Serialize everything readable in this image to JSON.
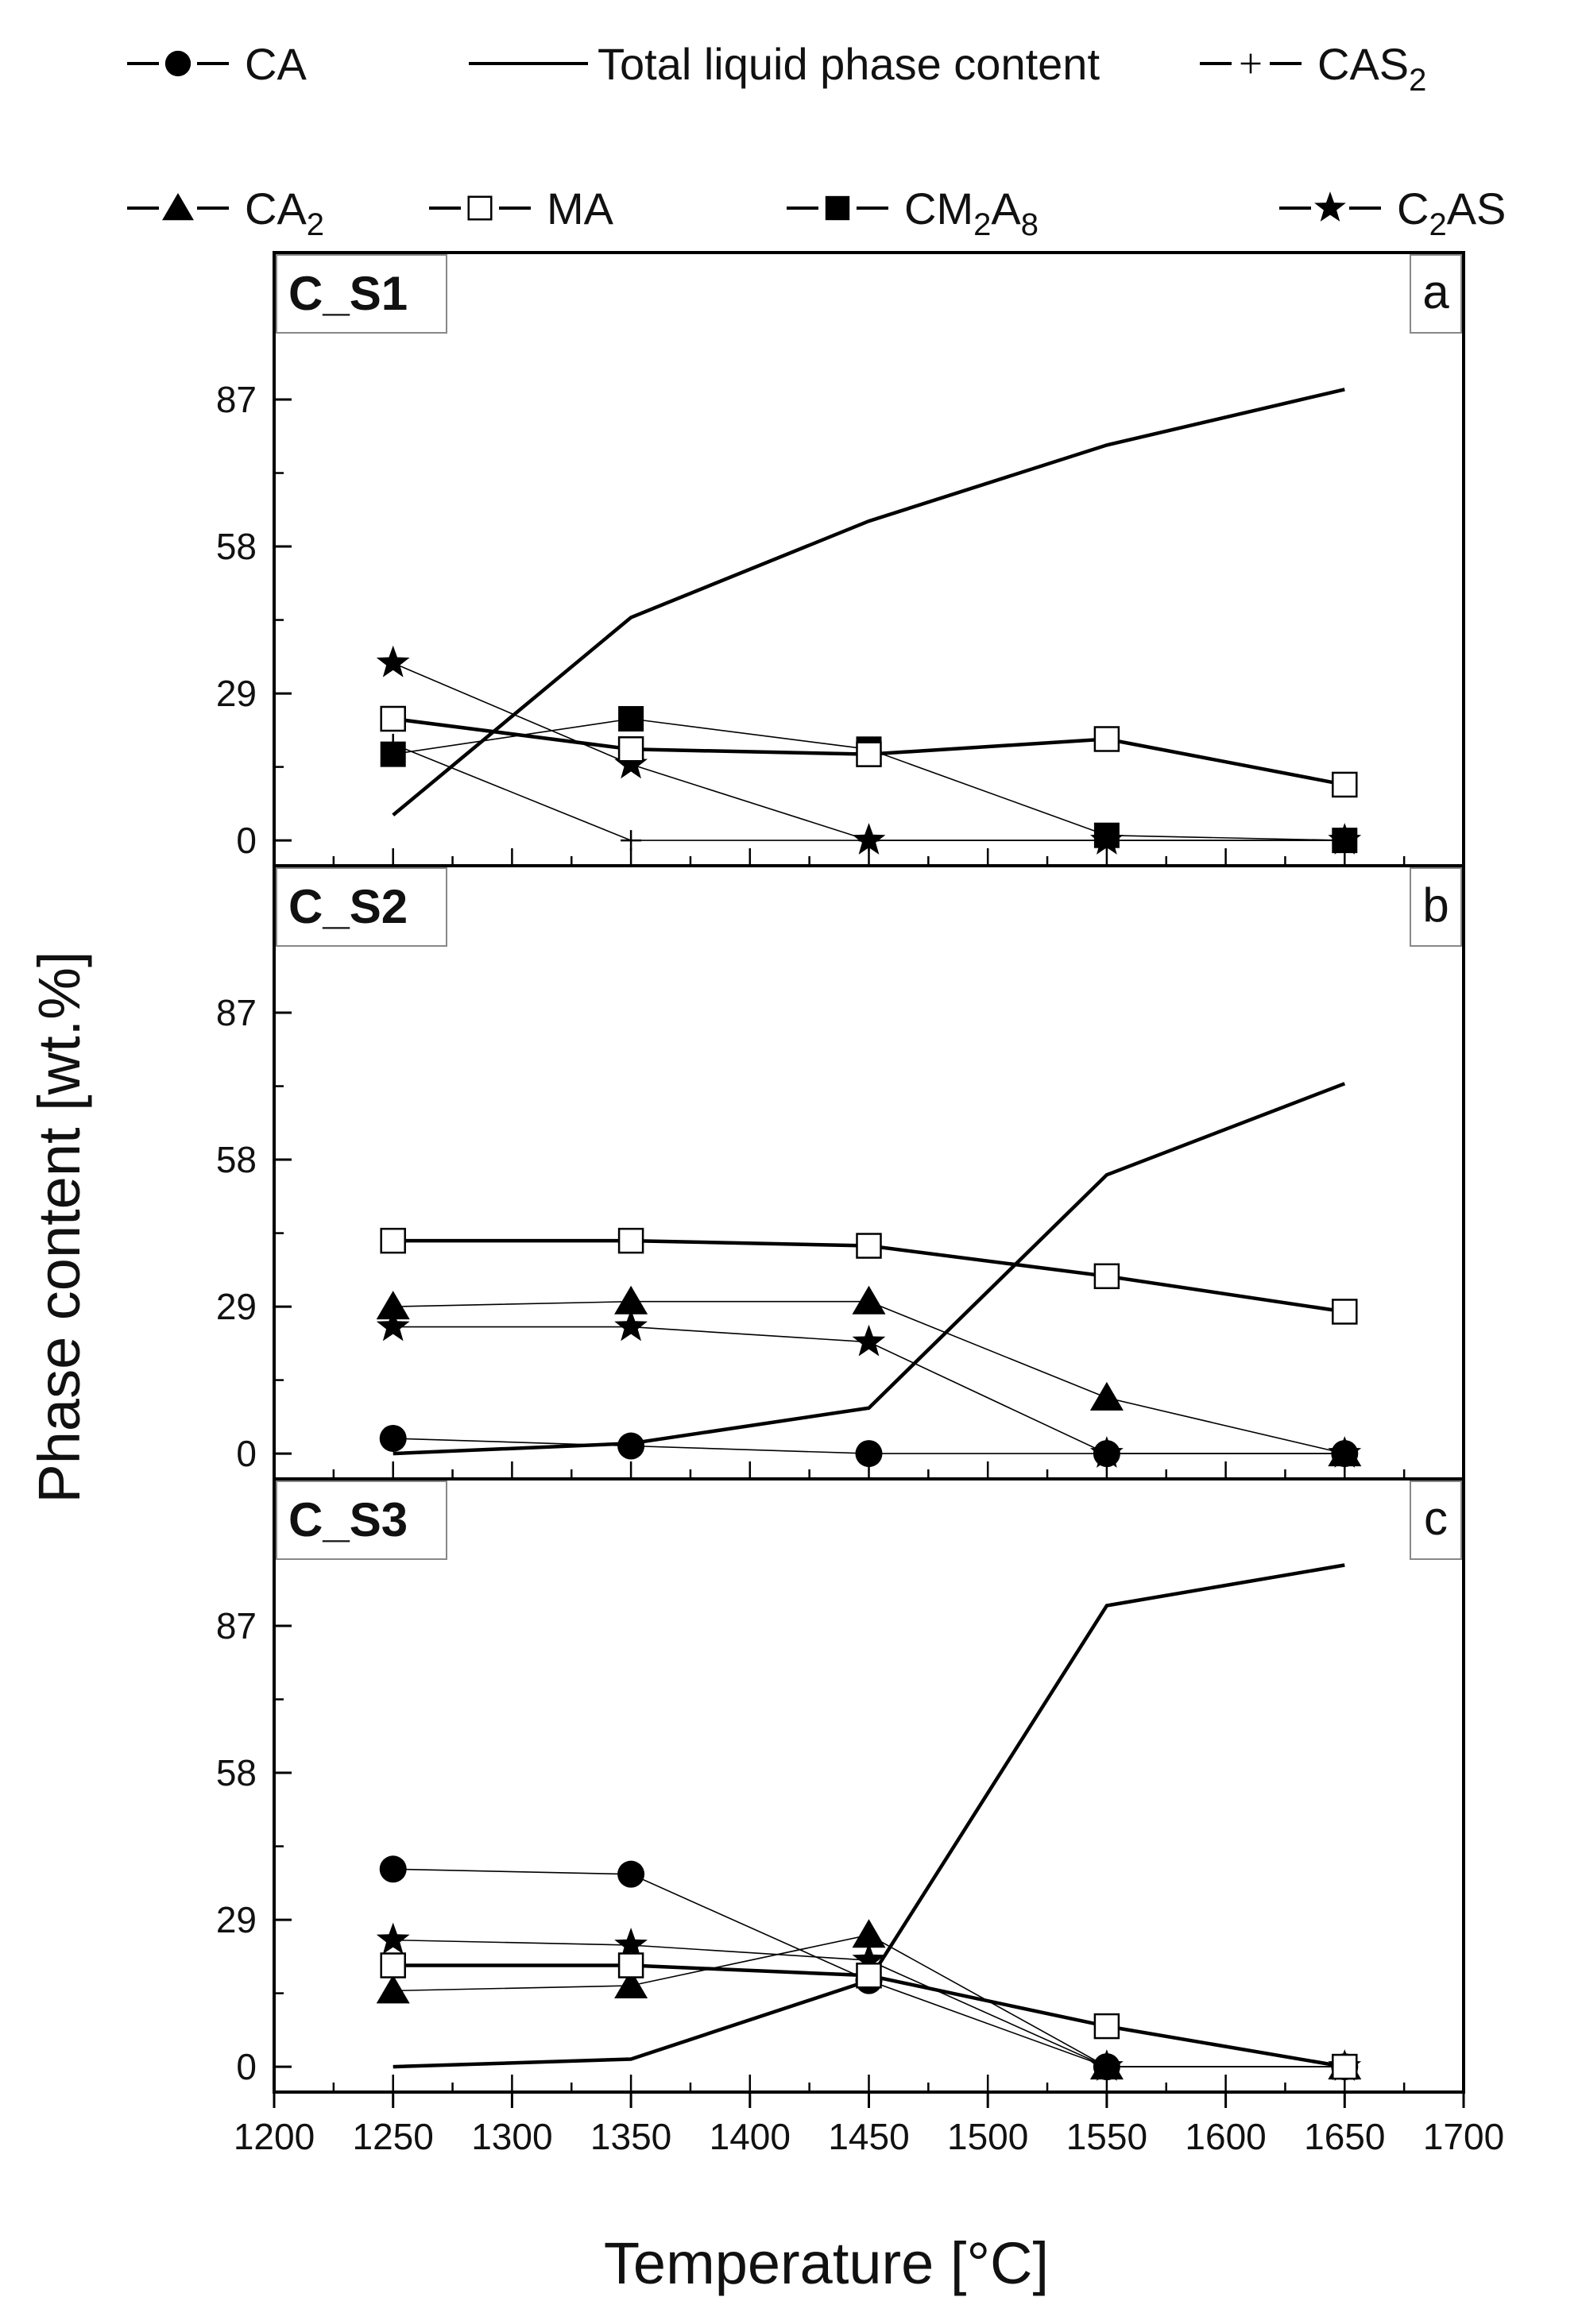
{
  "chart_data": {
    "type": "line",
    "xlabel": "Temperature [°C]",
    "ylabel": "Phase content [wt.%]",
    "xlim": [
      1200,
      1700
    ],
    "xticks": [
      1200,
      1250,
      1300,
      1350,
      1400,
      1450,
      1500,
      1550,
      1600,
      1650,
      1700
    ],
    "ylim": [
      -5,
      116
    ],
    "yticks": [
      0,
      29,
      58,
      87
    ],
    "x": [
      1250,
      1350,
      1450,
      1550,
      1650
    ],
    "legend": [
      {
        "key": "CA",
        "marker": "circle",
        "base": "CA",
        "sub": ""
      },
      {
        "key": "TL",
        "marker": "none",
        "base": "Total liquid phase content",
        "sub": ""
      },
      {
        "key": "CAS2",
        "marker": "plus",
        "base": "CAS",
        "sub": "2"
      },
      {
        "key": "CA2",
        "marker": "triangle",
        "base": "CA",
        "sub": "2"
      },
      {
        "key": "MA",
        "marker": "open-square",
        "base": "MA",
        "sub": ""
      },
      {
        "key": "CM2A8",
        "marker": "square",
        "parts": [
          {
            "t": "CM",
            "s": false
          },
          {
            "t": "2",
            "s": true
          },
          {
            "t": "A",
            "s": false
          },
          {
            "t": "8",
            "s": true
          }
        ]
      },
      {
        "key": "C2AS",
        "marker": "star",
        "parts": [
          {
            "t": "C",
            "s": false
          },
          {
            "t": "2",
            "s": true
          },
          {
            "t": "AS",
            "s": false
          }
        ]
      }
    ],
    "panels": [
      {
        "title": "C_S1",
        "letter": "a",
        "series": [
          {
            "key": "TL",
            "values": [
              5,
              44,
              63,
              78,
              89
            ]
          },
          {
            "key": "MA",
            "values": [
              24,
              18,
              17,
              20,
              11
            ]
          },
          {
            "key": "CM2A8",
            "values": [
              17,
              24,
              18,
              1,
              0
            ]
          },
          {
            "key": "C2AS",
            "values": [
              35,
              15,
              0,
              0,
              0
            ]
          },
          {
            "key": "CAS2",
            "values": [
              19,
              0,
              0,
              0,
              0
            ]
          }
        ]
      },
      {
        "title": "C_S2",
        "letter": "b",
        "series": [
          {
            "key": "TL",
            "values": [
              0,
              2,
              9,
              55,
              73
            ]
          },
          {
            "key": "MA",
            "values": [
              42,
              42,
              41,
              35,
              28
            ]
          },
          {
            "key": "CA2",
            "values": [
              29,
              30,
              30,
              11,
              0
            ]
          },
          {
            "key": "C2AS",
            "values": [
              25,
              25,
              22,
              0,
              0
            ]
          },
          {
            "key": "CA",
            "values": [
              3,
              1.5,
              0,
              0,
              0
            ]
          }
        ]
      },
      {
        "title": "C_S3",
        "letter": "c",
        "series": [
          {
            "key": "TL",
            "values": [
              0,
              1.5,
              17,
              91,
              99
            ]
          },
          {
            "key": "MA",
            "values": [
              20,
              20,
              18,
              8,
              0
            ]
          },
          {
            "key": "CA",
            "values": [
              39,
              38,
              17,
              0,
              0
            ]
          },
          {
            "key": "CA2",
            "values": [
              15,
              16,
              26,
              0,
              0
            ]
          },
          {
            "key": "C2AS",
            "values": [
              25,
              24,
              21,
              0,
              0
            ]
          }
        ]
      }
    ]
  }
}
